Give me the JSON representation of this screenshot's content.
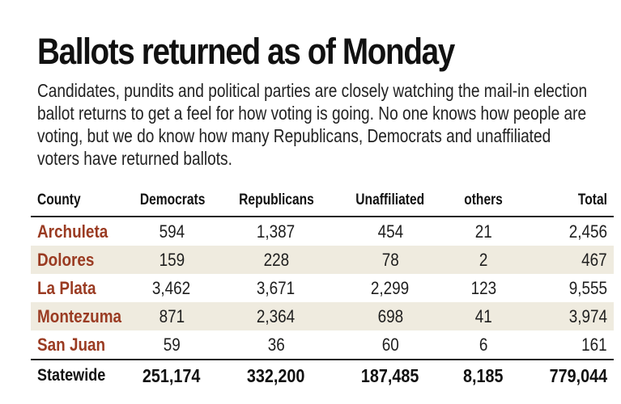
{
  "title": "Ballots returned as of Monday",
  "description": "Candidates, pundits and political parties are closely watching the mail-in election ballot returns to get a feel for how voting is going. No one knows how people are voting, but we do know how many Republicans, Democrats and unaffiliated voters have returned ballots.",
  "colors": {
    "county_text": "#9a3b22",
    "row_shade": "#efebdf",
    "rule": "#222222"
  },
  "chart_data": {
    "type": "table",
    "title": "Ballots returned as of Monday",
    "columns": [
      "County",
      "Democrats",
      "Republicans",
      "Unaffiliated",
      "others",
      "Total"
    ],
    "rows": [
      [
        "Archuleta",
        "594",
        "1,387",
        "454",
        "21",
        "2,456"
      ],
      [
        "Dolores",
        "159",
        "228",
        "78",
        "2",
        "467"
      ],
      [
        "La Plata",
        "3,462",
        "3,671",
        "2,299",
        "123",
        "9,555"
      ],
      [
        "Montezuma",
        "871",
        "2,364",
        "698",
        "41",
        "3,974"
      ],
      [
        "San Juan",
        "59",
        "36",
        "60",
        "6",
        "161"
      ]
    ],
    "statewide": [
      "Statewide",
      "251,174",
      "332,200",
      "187,485",
      "8,185",
      "779,044"
    ]
  }
}
